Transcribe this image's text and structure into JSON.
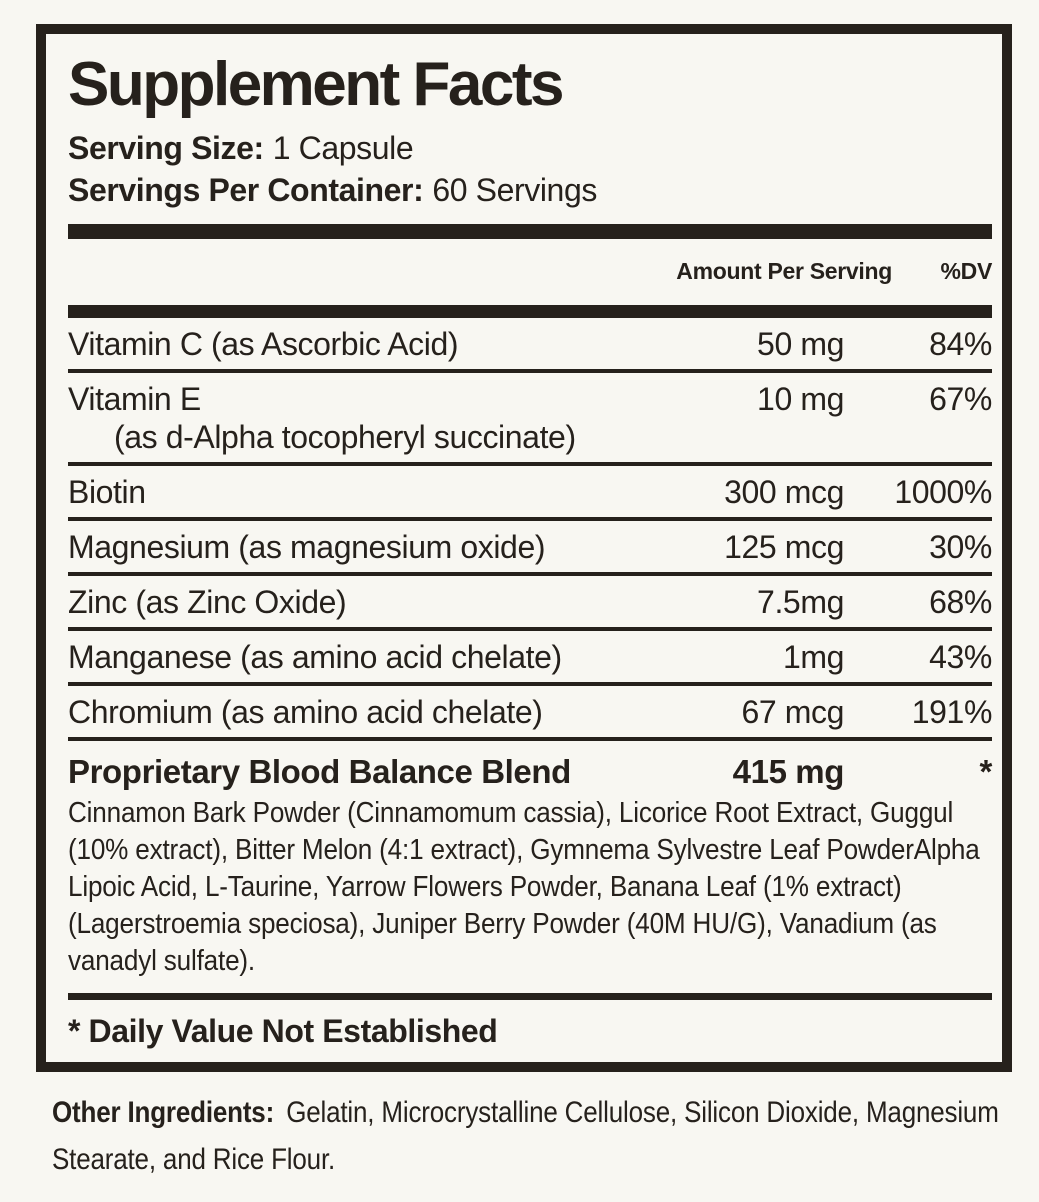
{
  "colors": {
    "ink": "#26211c",
    "background": "#f8f7f2"
  },
  "panel": {
    "title": "Supplement Facts",
    "serving_size": {
      "label": "Serving Size:",
      "value": "1 Capsule"
    },
    "servings_per_container": {
      "label": "Servings Per Container:",
      "value": "60 Servings"
    },
    "columns": {
      "amount": "Amount Per Serving",
      "dv": "%DV"
    },
    "rows": [
      {
        "name": "Vitamin C (as Ascorbic Acid)",
        "amount": "50 mg",
        "dv": "84%"
      },
      {
        "name": "Vitamin E",
        "name_line2": "(as d-Alpha tocopheryl succinate)",
        "amount": "10 mg",
        "dv": "67%"
      },
      {
        "name": "Biotin",
        "amount": "300 mcg",
        "dv": "1000%"
      },
      {
        "name": "Magnesium (as magnesium oxide)",
        "amount": "125 mcg",
        "dv": "30%"
      },
      {
        "name": "Zinc (as Zinc Oxide)",
        "amount": "7.5mg",
        "dv": "68%"
      },
      {
        "name": "Manganese (as amino acid chelate)",
        "amount": "1mg",
        "dv": "43%"
      },
      {
        "name": "Chromium (as amino acid chelate)",
        "amount": "67 mcg",
        "dv": "191%"
      }
    ],
    "blend": {
      "name": "Proprietary Blood Balance Blend",
      "amount": "415 mg",
      "dv": "*",
      "description": "Cinnamon Bark Powder (Cinnamomum cassia), Licorice Root Extract, Guggul (10% extract), Bitter Melon (4:1 extract), Gymnema Sylvestre Leaf PowderAlpha Lipoic Acid, L-Taurine, Yarrow Flowers Powder, Banana Leaf (1% extract) (Lagerstroemia speciosa), Juniper Berry Powder (40M HU/G), Vanadium (as vanadyl sulfate)."
    },
    "footnote": "* Daily Value Not Established"
  },
  "other_ingredients": {
    "label": "Other Ingredients:",
    "text": "Gelatin, Microcrystalline Cellulose, Silicon Dioxide, Magnesium Stearate, and Rice Flour."
  }
}
